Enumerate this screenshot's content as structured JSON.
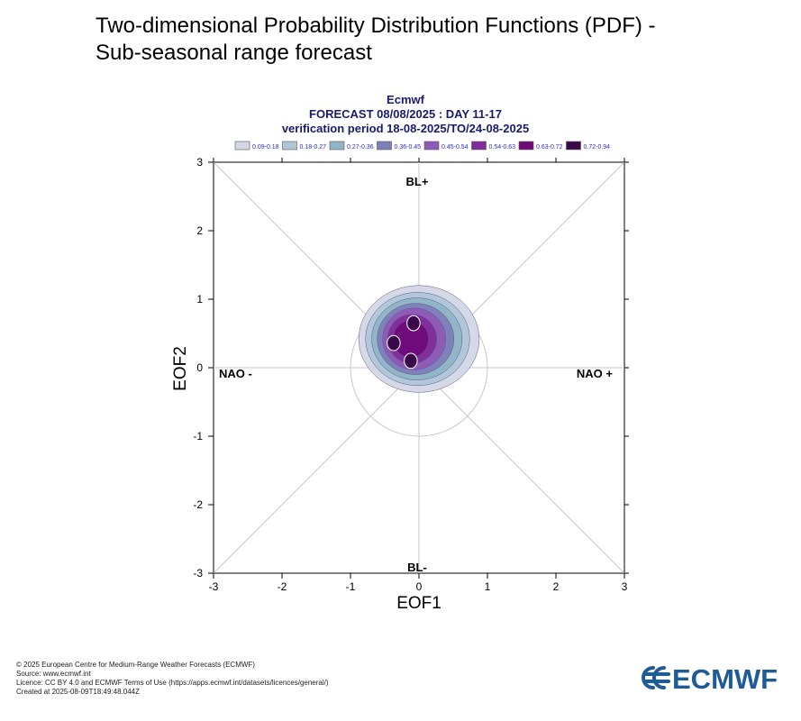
{
  "page": {
    "title_line1": "Two-dimensional Probability Distribution Functions (PDF) -",
    "title_line2": "Sub-seasonal range forecast"
  },
  "chart_data": {
    "type": "heatmap",
    "header": {
      "line1": "Ecmwf",
      "line2": "FORECAST 08/08/2025 : DAY 11-17",
      "line3": "verification period 18-08-2025/TO/24-08-2025"
    },
    "xlabel": "EOF1",
    "ylabel": "EOF2",
    "xlim": [
      -3,
      3
    ],
    "ylim": [
      -3,
      3
    ],
    "xticks": [
      "-3",
      "-2",
      "-1",
      "0",
      "1",
      "2",
      "3"
    ],
    "yticks": [
      "-3",
      "-2",
      "-1",
      "0",
      "1",
      "2",
      "3"
    ],
    "regime_labels": {
      "top": "BL+",
      "bottom": "BL-",
      "left": "NAO -",
      "right": "NAO +"
    },
    "unit_circle_radius": 1,
    "legend": [
      {
        "label": "0.09-0.18",
        "color": "#d3d6e6"
      },
      {
        "label": "0.18-0.27",
        "color": "#b0c6d8"
      },
      {
        "label": "0.27-0.36",
        "color": "#8fb5c6"
      },
      {
        "label": "0.36-0.45",
        "color": "#7d7fb8"
      },
      {
        "label": "0.45-0.54",
        "color": "#8f59b6"
      },
      {
        "label": "0.54-0.63",
        "color": "#7f2d9a"
      },
      {
        "label": "0.63-0.72",
        "color": "#6e0a7a"
      },
      {
        "label": "0.72-0.94",
        "color": "#3a0848"
      }
    ],
    "density_levels": [
      {
        "level": "0.09-0.18",
        "cx": 0.0,
        "cy": 0.42,
        "rx": 0.88,
        "ry": 0.78
      },
      {
        "level": "0.18-0.27",
        "cx": -0.02,
        "cy": 0.42,
        "rx": 0.76,
        "ry": 0.68
      },
      {
        "level": "0.27-0.36",
        "cx": -0.03,
        "cy": 0.42,
        "rx": 0.66,
        "ry": 0.6
      },
      {
        "level": "0.36-0.45",
        "cx": -0.05,
        "cy": 0.42,
        "rx": 0.56,
        "ry": 0.52
      },
      {
        "level": "0.45-0.54",
        "cx": -0.07,
        "cy": 0.42,
        "rx": 0.46,
        "ry": 0.45
      },
      {
        "level": "0.54-0.63",
        "cx": -0.1,
        "cy": 0.42,
        "rx": 0.36,
        "ry": 0.36
      },
      {
        "level": "0.63-0.72",
        "cx": -0.12,
        "cy": 0.42,
        "rx": 0.26,
        "ry": 0.27
      }
    ],
    "peaks": [
      {
        "level": "0.72-0.94",
        "x": -0.08,
        "y": 0.65
      },
      {
        "level": "0.72-0.94",
        "x": -0.37,
        "y": 0.36
      },
      {
        "level": "0.72-0.94",
        "x": -0.12,
        "y": 0.1
      }
    ]
  },
  "footer": {
    "line1": "© 2025 European Centre for Medium-Range Weather Forecasts (ECMWF)",
    "line2": "Source: www.ecmwf.int",
    "line3": "Licence: CC BY 4.0 and ECMWF Terms of Use (https://apps.ecmwf.int/datasets/licences/general/)",
    "line4": "Created at 2025-08-09T18:49:48.044Z"
  },
  "logo": {
    "text": "ECMWF",
    "color": "#1f5b96"
  }
}
